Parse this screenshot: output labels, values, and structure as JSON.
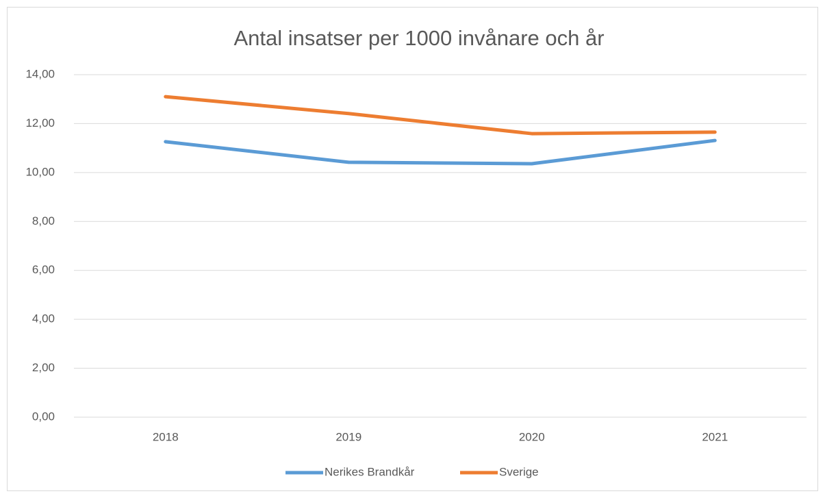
{
  "chart_data": {
    "type": "line",
    "title": "Antal insatser per 1000 invånare och år",
    "categories": [
      "2018",
      "2019",
      "2020",
      "2021"
    ],
    "series": [
      {
        "name": "Nerikes Brandkår",
        "color": "#5b9bd5",
        "values": [
          11.26,
          10.42,
          10.36,
          11.31
        ]
      },
      {
        "name": "Sverige",
        "color": "#ed7d31",
        "values": [
          13.1,
          12.41,
          11.59,
          11.65
        ]
      }
    ],
    "ylim": [
      0,
      14
    ],
    "yticks": [
      {
        "value": 0,
        "label": "0,00"
      },
      {
        "value": 2,
        "label": "2,00"
      },
      {
        "value": 4,
        "label": "4,00"
      },
      {
        "value": 6,
        "label": "6,00"
      },
      {
        "value": 8,
        "label": "8,00"
      },
      {
        "value": 10,
        "label": "10,00"
      },
      {
        "value": 12,
        "label": "12,00"
      },
      {
        "value": 14,
        "label": "14,00"
      }
    ],
    "grid": true,
    "legend": "bottom"
  }
}
